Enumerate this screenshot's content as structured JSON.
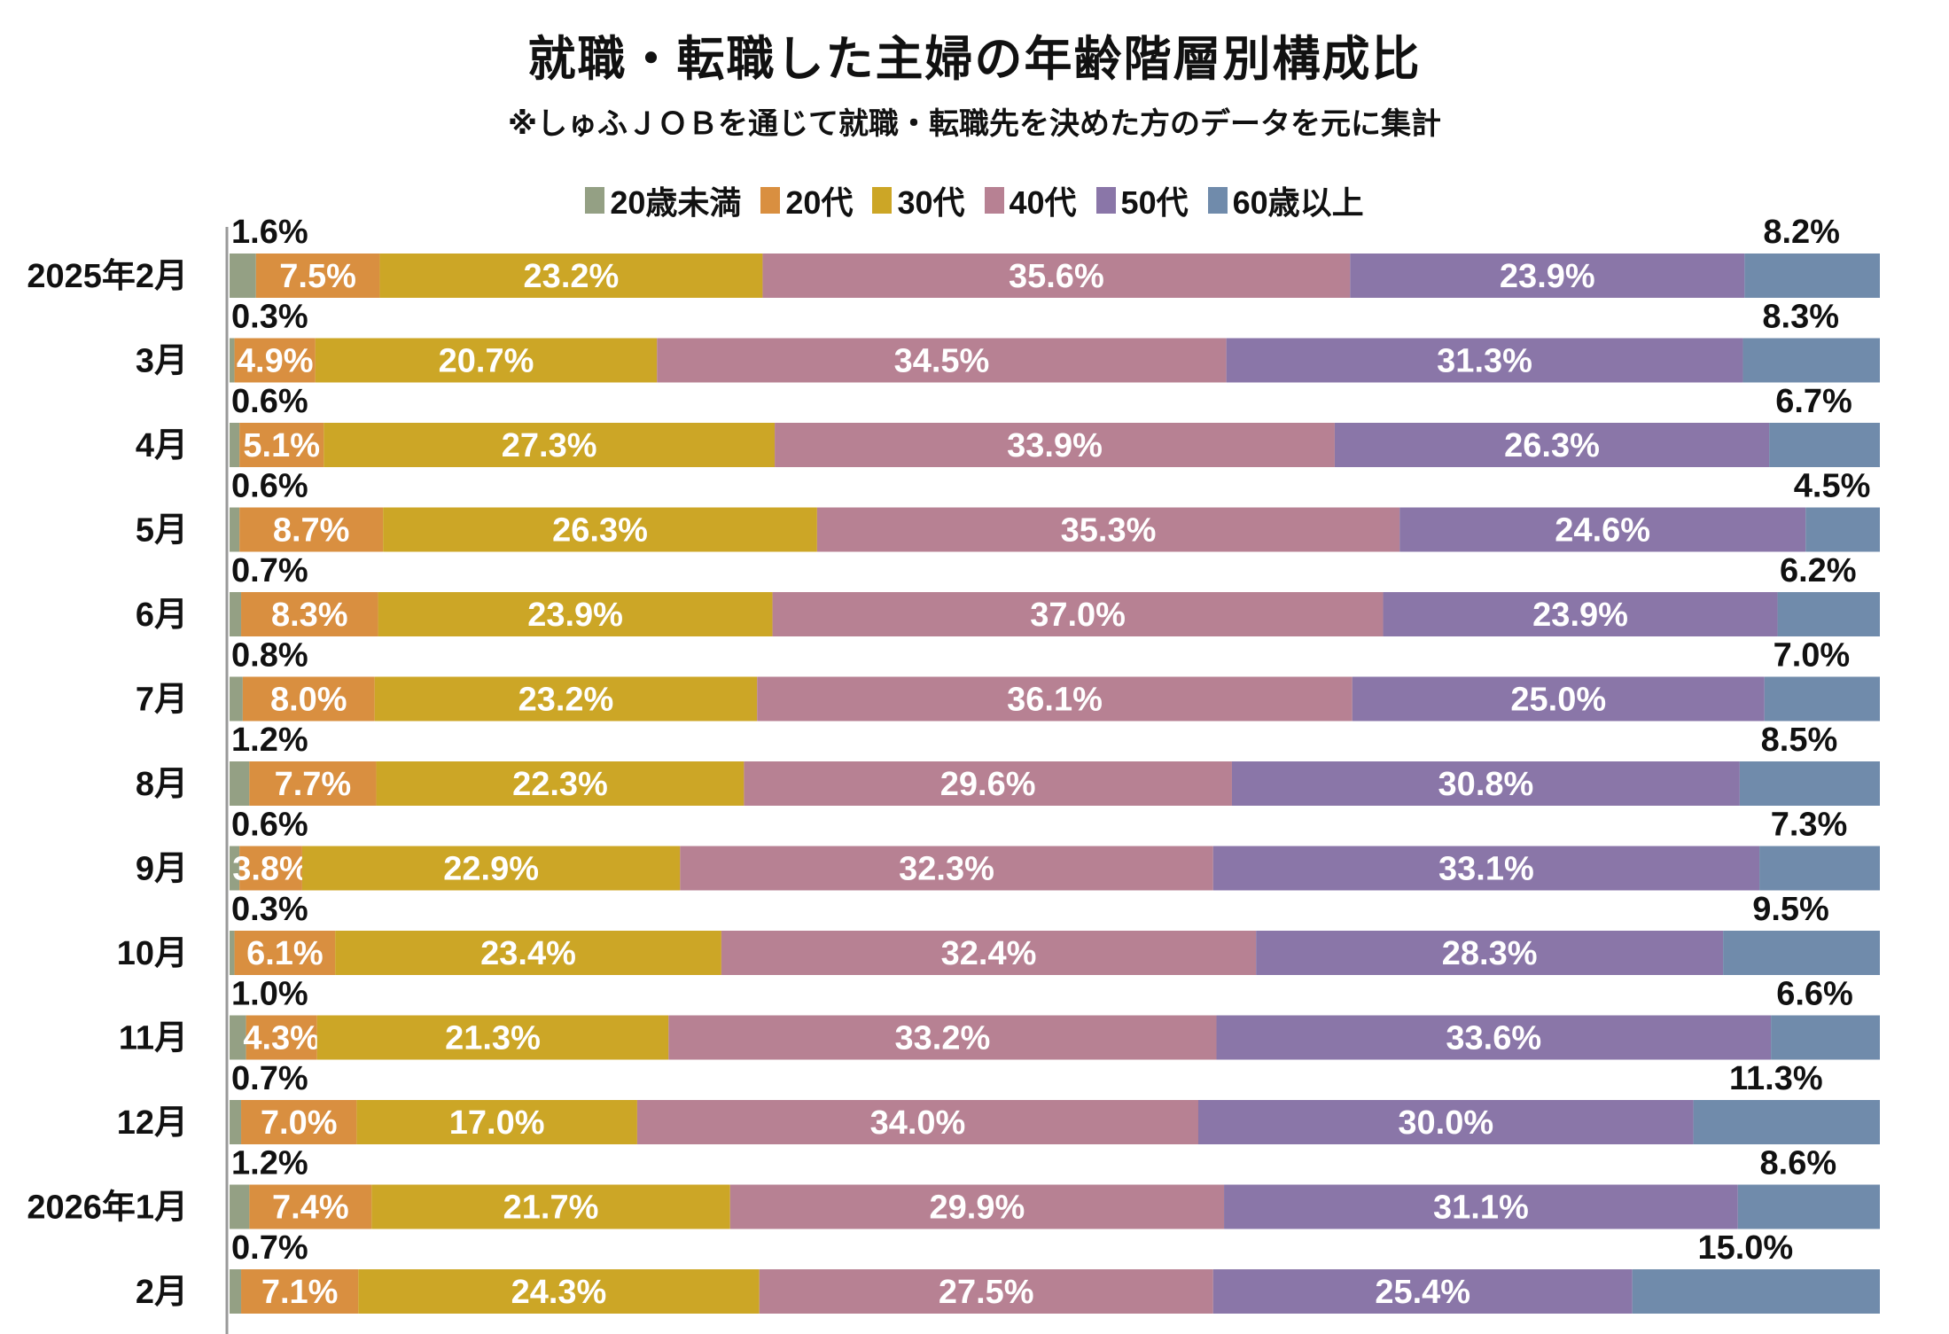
{
  "title": "就職・転職した主婦の年齢階層別構成比",
  "subtitle": "※しゅふＪＯＢを通じて就職・転職先を決めた方のデータを元に集計",
  "chart_data": {
    "type": "bar",
    "orientation": "horizontal",
    "stacked": "100%",
    "title": "就職・転職した主婦の年齢階層別構成比",
    "subtitle": "※しゅふＪＯＢを通じて就職・転職先を決めた方のデータを元に集計",
    "legend_position": "top",
    "grid": false,
    "xlim": [
      0,
      100
    ],
    "unit": "%",
    "categories": [
      "2025年2月",
      "3月",
      "4月",
      "5月",
      "6月",
      "7月",
      "8月",
      "9月",
      "10月",
      "11月",
      "12月",
      "2026年1月",
      "2月"
    ],
    "series": [
      {
        "name": "20歳未満",
        "color": "#94a084",
        "values": [
          1.6,
          0.3,
          0.6,
          0.6,
          0.7,
          0.8,
          1.2,
          0.6,
          0.3,
          1.0,
          0.7,
          1.2,
          0.7
        ]
      },
      {
        "name": "20代",
        "color": "#d98f40",
        "values": [
          7.5,
          4.9,
          5.1,
          8.7,
          8.3,
          8.0,
          7.7,
          3.8,
          6.1,
          4.3,
          7.0,
          7.4,
          7.1
        ]
      },
      {
        "name": "30代",
        "color": "#cca626",
        "values": [
          23.2,
          20.7,
          27.3,
          26.3,
          23.9,
          23.2,
          22.3,
          22.9,
          23.4,
          21.3,
          17.0,
          21.7,
          24.3
        ]
      },
      {
        "name": "40代",
        "color": "#b78193",
        "values": [
          35.6,
          34.5,
          33.9,
          35.3,
          37.0,
          36.1,
          29.6,
          32.3,
          32.4,
          33.2,
          34.0,
          29.9,
          27.5
        ]
      },
      {
        "name": "50代",
        "color": "#8a76a8",
        "values": [
          23.9,
          31.3,
          26.3,
          24.6,
          23.9,
          25.0,
          30.8,
          33.1,
          28.3,
          33.6,
          30.0,
          31.1,
          25.4
        ]
      },
      {
        "name": "60歳以上",
        "color": "#708bab",
        "values": [
          8.2,
          8.3,
          6.7,
          4.5,
          6.2,
          7.0,
          8.5,
          7.3,
          9.5,
          6.6,
          11.3,
          8.6,
          15.0
        ]
      }
    ]
  }
}
